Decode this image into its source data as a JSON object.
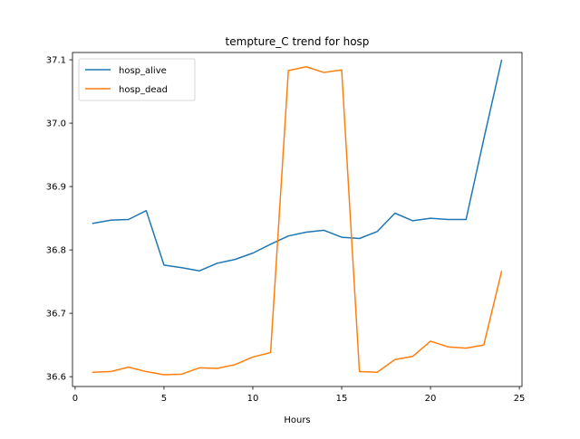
{
  "chart_data": {
    "type": "line",
    "title": "tempture_C trend for hosp",
    "xlabel": "Hours",
    "ylabel": "",
    "xlim": [
      -0.15,
      25.15
    ],
    "ylim": [
      36.5845,
      37.1115
    ],
    "xticks": [
      0,
      5,
      10,
      15,
      20,
      25
    ],
    "yticks": [
      36.6,
      36.7,
      36.8,
      36.9,
      37.0,
      37.1
    ],
    "ytick_labels": [
      "36.6",
      "36.7",
      "36.8",
      "36.9",
      "37.0",
      "37.1"
    ],
    "grid": false,
    "legend_position": "top-left",
    "x": [
      1,
      2,
      3,
      4,
      5,
      6,
      7,
      8,
      9,
      10,
      11,
      12,
      13,
      14,
      15,
      16,
      17,
      18,
      19,
      20,
      21,
      22,
      23,
      24
    ],
    "series": [
      {
        "name": "hosp_alive",
        "color": "#1f77b4",
        "values": [
          36.842,
          36.847,
          36.848,
          36.862,
          36.776,
          36.772,
          36.767,
          36.779,
          36.785,
          36.795,
          36.809,
          36.822,
          36.828,
          36.831,
          36.82,
          36.818,
          36.829,
          36.858,
          36.846,
          36.85,
          36.848,
          36.848,
          36.975,
          37.099
        ]
      },
      {
        "name": "hosp_dead",
        "color": "#ff7f0e",
        "values": [
          36.607,
          36.608,
          36.615,
          36.608,
          36.603,
          36.604,
          36.614,
          36.613,
          36.619,
          36.631,
          36.638,
          37.083,
          37.089,
          37.08,
          37.084,
          36.608,
          36.607,
          36.627,
          36.632,
          36.656,
          36.647,
          36.645,
          36.65,
          36.766
        ]
      }
    ]
  }
}
